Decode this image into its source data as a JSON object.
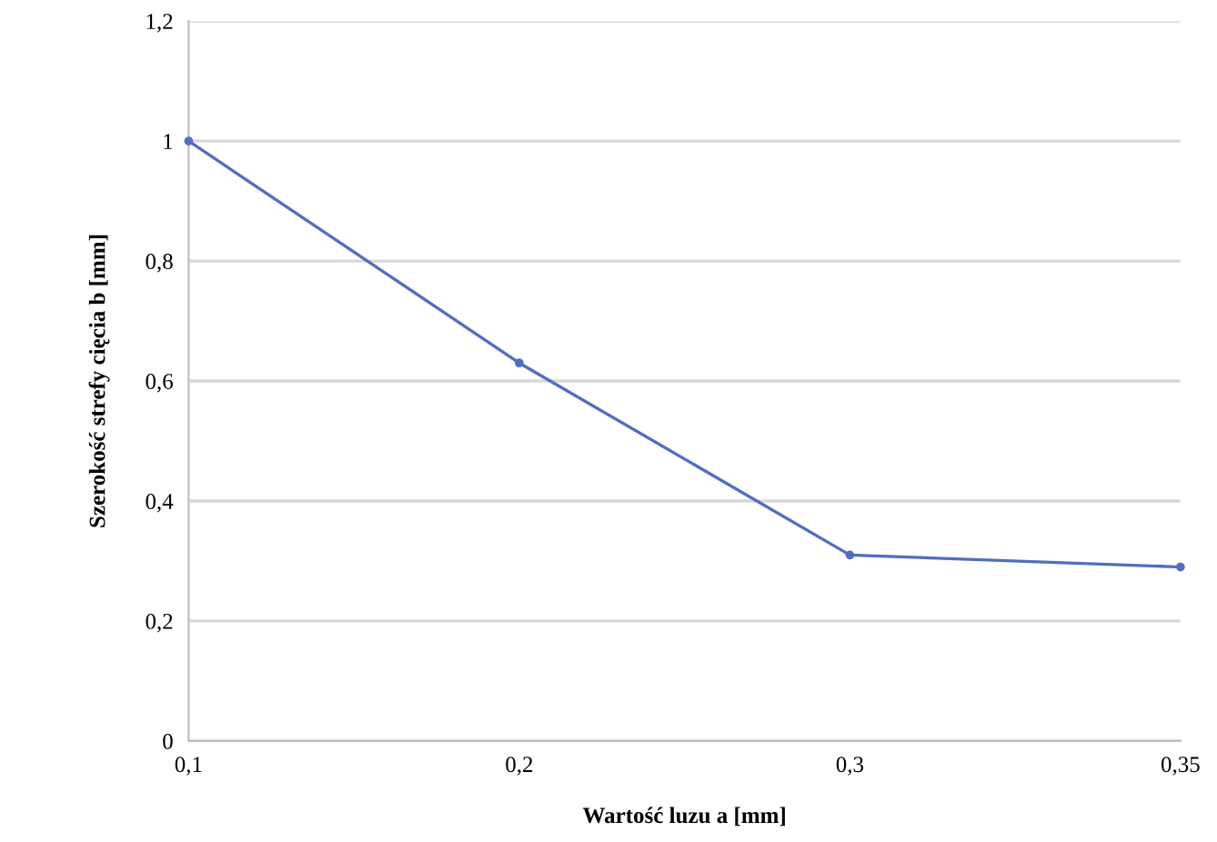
{
  "chart_data": {
    "type": "line",
    "xlabel": "Wartość luzu a [mm]",
    "ylabel": "Szerokość strefy cięcia b [mm]",
    "categories": [
      "0,1",
      "0,2",
      "0,3",
      "0,35"
    ],
    "series": [
      {
        "color": "#4f6fc0",
        "values": [
          1.0,
          0.63,
          0.31,
          0.29
        ]
      }
    ],
    "ylim": [
      0,
      1.2
    ],
    "yticks": [
      {
        "value": 0,
        "label": "0"
      },
      {
        "value": 0.2,
        "label": "0,2"
      },
      {
        "value": 0.4,
        "label": "0,4"
      },
      {
        "value": 0.6,
        "label": "0,6"
      },
      {
        "value": 0.8,
        "label": "0,8"
      },
      {
        "value": 1,
        "label": "1"
      },
      {
        "value": 1.2,
        "label": "1,2"
      }
    ],
    "grid": "y",
    "marker": "circle",
    "line_style": "solid"
  }
}
